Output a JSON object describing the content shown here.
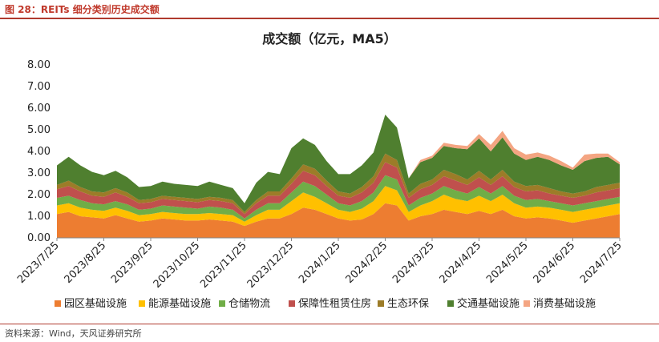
{
  "figure_label": "图 28：REITs 细分类别历史成交额",
  "source": "资料来源：Wind，天风证券研究所",
  "chart_data": {
    "type": "area",
    "stacked": true,
    "title": "成交额（亿元，MA5）",
    "ylim": [
      0,
      8
    ],
    "yticks": [
      "0.00",
      "1.00",
      "2.00",
      "3.00",
      "4.00",
      "5.00",
      "6.00",
      "7.00",
      "8.00"
    ],
    "xticks": [
      "2023/7/25",
      "2023/8/25",
      "2023/9/25",
      "2023/10/25",
      "2023/11/25",
      "2023/12/25",
      "2024/1/25",
      "2024/2/25",
      "2024/3/25",
      "2024/4/25",
      "2024/5/25",
      "2024/6/25",
      "2024/7/25"
    ],
    "legend_position": "bottom",
    "x": [
      "2023/7/25",
      "2023/8/1",
      "2023/8/8",
      "2023/8/15",
      "2023/8/25",
      "2023/9/1",
      "2023/9/8",
      "2023/9/15",
      "2023/9/25",
      "2023/10/1",
      "2023/10/8",
      "2023/10/15",
      "2023/10/25",
      "2023/11/1",
      "2023/11/8",
      "2023/11/15",
      "2023/11/25",
      "2023/12/1",
      "2023/12/8",
      "2023/12/15",
      "2023/12/25",
      "2024/1/1",
      "2024/1/8",
      "2024/1/15",
      "2024/1/25",
      "2024/2/1",
      "2024/2/8",
      "2024/2/15",
      "2024/2/25",
      "2024/3/1",
      "2024/3/8",
      "2024/3/15",
      "2024/3/25",
      "2024/4/1",
      "2024/4/8",
      "2024/4/15",
      "2024/4/25",
      "2024/5/1",
      "2024/5/8",
      "2024/5/15",
      "2024/5/25",
      "2024/6/1",
      "2024/6/8",
      "2024/6/15",
      "2024/6/25",
      "2024/7/1",
      "2024/7/8",
      "2024/7/15",
      "2024/7/25"
    ],
    "series": [
      {
        "name": "园区基础设施",
        "color": "#ed7d31",
        "values": [
          1.1,
          1.2,
          1.0,
          0.95,
          0.9,
          1.05,
          0.9,
          0.75,
          0.8,
          0.9,
          0.85,
          0.8,
          0.8,
          0.85,
          0.8,
          0.75,
          0.55,
          0.75,
          0.9,
          0.9,
          1.1,
          1.4,
          1.3,
          1.1,
          0.9,
          0.8,
          0.85,
          1.1,
          1.6,
          1.5,
          0.8,
          1.0,
          1.1,
          1.3,
          1.2,
          1.1,
          1.25,
          1.1,
          1.3,
          1.0,
          0.9,
          0.95,
          0.9,
          0.8,
          0.7,
          0.8,
          0.9,
          1.0,
          1.1
        ]
      },
      {
        "name": "能源基础设施",
        "color": "#ffc000",
        "values": [
          0.4,
          0.4,
          0.4,
          0.35,
          0.35,
          0.35,
          0.35,
          0.3,
          0.3,
          0.3,
          0.3,
          0.3,
          0.3,
          0.3,
          0.3,
          0.3,
          0.2,
          0.3,
          0.4,
          0.4,
          0.6,
          0.7,
          0.6,
          0.5,
          0.4,
          0.4,
          0.5,
          0.6,
          0.8,
          0.7,
          0.4,
          0.5,
          0.6,
          0.7,
          0.6,
          0.6,
          0.7,
          0.6,
          0.7,
          0.6,
          0.5,
          0.5,
          0.5,
          0.5,
          0.5,
          0.5,
          0.5,
          0.5,
          0.5
        ]
      },
      {
        "name": "仓储物流",
        "color": "#70ad47",
        "values": [
          0.35,
          0.35,
          0.35,
          0.3,
          0.3,
          0.3,
          0.3,
          0.25,
          0.25,
          0.3,
          0.3,
          0.3,
          0.25,
          0.3,
          0.3,
          0.25,
          0.15,
          0.25,
          0.3,
          0.3,
          0.4,
          0.5,
          0.5,
          0.4,
          0.3,
          0.3,
          0.35,
          0.4,
          0.5,
          0.5,
          0.3,
          0.35,
          0.35,
          0.4,
          0.4,
          0.35,
          0.4,
          0.35,
          0.4,
          0.35,
          0.35,
          0.35,
          0.3,
          0.3,
          0.3,
          0.3,
          0.3,
          0.3,
          0.3
        ]
      },
      {
        "name": "保障性租赁住房",
        "color": "#c0504d",
        "values": [
          0.4,
          0.45,
          0.4,
          0.35,
          0.35,
          0.4,
          0.35,
          0.3,
          0.3,
          0.3,
          0.3,
          0.3,
          0.3,
          0.3,
          0.3,
          0.3,
          0.2,
          0.3,
          0.35,
          0.35,
          0.4,
          0.5,
          0.5,
          0.4,
          0.35,
          0.35,
          0.4,
          0.45,
          0.6,
          0.55,
          0.35,
          0.4,
          0.4,
          0.45,
          0.45,
          0.4,
          0.45,
          0.4,
          0.45,
          0.4,
          0.4,
          0.4,
          0.35,
          0.35,
          0.35,
          0.35,
          0.4,
          0.4,
          0.4
        ]
      },
      {
        "name": "生态环保",
        "color": "#9c7c28",
        "values": [
          0.2,
          0.25,
          0.2,
          0.2,
          0.2,
          0.2,
          0.2,
          0.15,
          0.15,
          0.15,
          0.15,
          0.15,
          0.15,
          0.15,
          0.15,
          0.15,
          0.1,
          0.15,
          0.2,
          0.2,
          0.25,
          0.3,
          0.3,
          0.25,
          0.2,
          0.2,
          0.25,
          0.3,
          0.4,
          0.35,
          0.2,
          0.25,
          0.25,
          0.3,
          0.3,
          0.25,
          0.3,
          0.25,
          0.3,
          0.25,
          0.25,
          0.25,
          0.25,
          0.2,
          0.2,
          0.2,
          0.25,
          0.25,
          0.25
        ]
      },
      {
        "name": "交通基础设施",
        "color": "#4f7f2f",
        "values": [
          0.9,
          1.1,
          1.0,
          0.9,
          0.8,
          0.8,
          0.7,
          0.6,
          0.6,
          0.65,
          0.6,
          0.6,
          0.6,
          0.7,
          0.6,
          0.55,
          0.4,
          0.8,
          0.9,
          0.8,
          1.4,
          1.2,
          1.1,
          0.9,
          0.8,
          0.9,
          1.0,
          1.1,
          1.8,
          1.5,
          0.7,
          1.0,
          1.0,
          1.1,
          1.2,
          1.4,
          1.5,
          1.3,
          1.5,
          1.3,
          1.2,
          1.3,
          1.3,
          1.2,
          1.1,
          1.4,
          1.35,
          1.3,
          0.85
        ]
      },
      {
        "name": "消费基础设施",
        "color": "#f4a582",
        "values": [
          0,
          0,
          0,
          0,
          0,
          0,
          0,
          0,
          0,
          0,
          0,
          0,
          0,
          0,
          0,
          0,
          0,
          0,
          0,
          0,
          0,
          0,
          0,
          0,
          0,
          0,
          0,
          0,
          0,
          0,
          0,
          0.1,
          0.1,
          0.15,
          0.15,
          0.15,
          0.2,
          0.3,
          0.3,
          0.25,
          0.25,
          0.2,
          0.2,
          0.2,
          0.1,
          0.3,
          0.2,
          0.15,
          0.1
        ]
      }
    ]
  }
}
